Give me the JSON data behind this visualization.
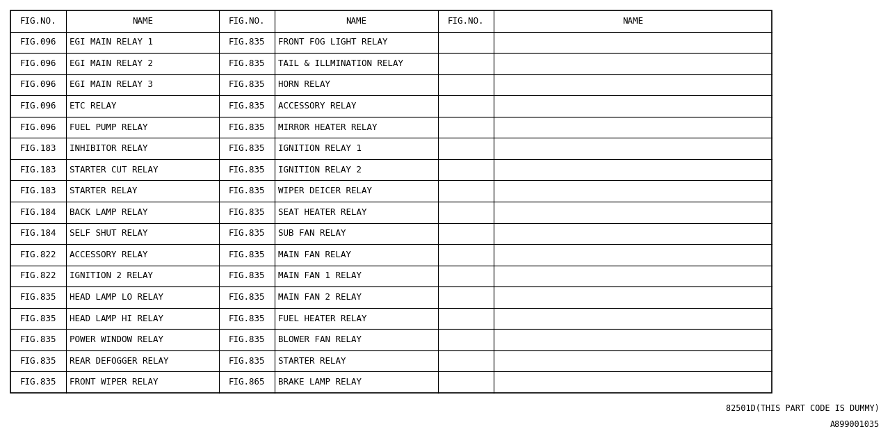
{
  "background_color": "#ffffff",
  "border_color": "#000000",
  "text_color": "#000000",
  "font_size": 9.0,
  "col1_data": [
    [
      "FIG.096",
      "EGI MAIN RELAY 1"
    ],
    [
      "FIG.096",
      "EGI MAIN RELAY 2"
    ],
    [
      "FIG.096",
      "EGI MAIN RELAY 3"
    ],
    [
      "FIG.096",
      "ETC RELAY"
    ],
    [
      "FIG.096",
      "FUEL PUMP RELAY"
    ],
    [
      "FIG.183",
      "INHIBITOR RELAY"
    ],
    [
      "FIG.183",
      "STARTER CUT RELAY"
    ],
    [
      "FIG.183",
      "STARTER RELAY"
    ],
    [
      "FIG.184",
      "BACK LAMP RELAY"
    ],
    [
      "FIG.184",
      "SELF SHUT RELAY"
    ],
    [
      "FIG.822",
      "ACCESSORY RELAY"
    ],
    [
      "FIG.822",
      "IGNITION 2 RELAY"
    ],
    [
      "FIG.835",
      "HEAD LAMP LO RELAY"
    ],
    [
      "FIG.835",
      "HEAD LAMP HI RELAY"
    ],
    [
      "FIG.835",
      "POWER WINDOW RELAY"
    ],
    [
      "FIG.835",
      "REAR DEFOGGER RELAY"
    ],
    [
      "FIG.835",
      "FRONT WIPER RELAY"
    ]
  ],
  "col2_data": [
    [
      "FIG.835",
      "FRONT FOG LIGHT RELAY"
    ],
    [
      "FIG.835",
      "TAIL & ILLMINATION RELAY"
    ],
    [
      "FIG.835",
      "HORN RELAY"
    ],
    [
      "FIG.835",
      "ACCESSORY RELAY"
    ],
    [
      "FIG.835",
      "MIRROR HEATER RELAY"
    ],
    [
      "FIG.835",
      "IGNITION RELAY 1"
    ],
    [
      "FIG.835",
      "IGNITION RELAY 2"
    ],
    [
      "FIG.835",
      "WIPER DEICER RELAY"
    ],
    [
      "FIG.835",
      "SEAT HEATER RELAY"
    ],
    [
      "FIG.835",
      "SUB FAN RELAY"
    ],
    [
      "FIG.835",
      "MAIN FAN RELAY"
    ],
    [
      "FIG.835",
      "MAIN FAN 1 RELAY"
    ],
    [
      "FIG.835",
      "MAIN FAN 2 RELAY"
    ],
    [
      "FIG.835",
      "FUEL HEATER RELAY"
    ],
    [
      "FIG.835",
      "BLOWER FAN RELAY"
    ],
    [
      "FIG.835",
      "STARTER RELAY"
    ],
    [
      "FIG.865",
      "BRAKE LAMP RELAY"
    ]
  ],
  "footer_text1": "82501D(THIS PART CODE IS DUMMY)",
  "footer_text2": "A899001035"
}
